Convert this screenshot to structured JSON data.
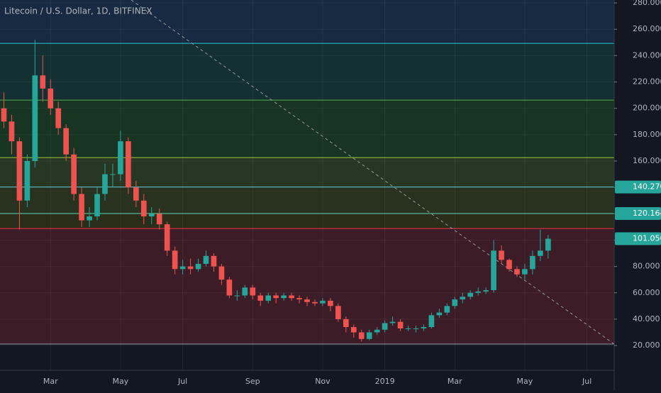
{
  "chart_data": {
    "type": "candlestick",
    "title": "Litecoin / U.S. Dollar, 1D, BITFINEX",
    "categories": [
      null,
      null,
      null,
      null,
      null,
      null,
      "Mar",
      null,
      null,
      null,
      null,
      null,
      null,
      null,
      null,
      "May",
      null,
      null,
      null,
      null,
      null,
      null,
      null,
      "Jul",
      null,
      null,
      null,
      null,
      null,
      null,
      null,
      null,
      "Sep",
      null,
      null,
      null,
      null,
      null,
      null,
      null,
      null,
      "Nov",
      null,
      null,
      null,
      null,
      null,
      null,
      null,
      "2019",
      null,
      null,
      null,
      null,
      null,
      null,
      null,
      null,
      "Mar",
      null,
      null,
      null,
      null,
      null,
      null,
      null,
      null,
      "May",
      null,
      null,
      null,
      null,
      null,
      null,
      null,
      "Jul",
      null,
      null,
      null
    ],
    "open": [
      200,
      190,
      175,
      130,
      160,
      225,
      215,
      200,
      185,
      165,
      135,
      115,
      118,
      135,
      150,
      150,
      175,
      140,
      130,
      118,
      120,
      112,
      92,
      78,
      80,
      78,
      82,
      88,
      80,
      70,
      58,
      58,
      64,
      58,
      54,
      58,
      56,
      58,
      56,
      55,
      53,
      52,
      54,
      50,
      40,
      34,
      30,
      25,
      30,
      32,
      37,
      38,
      33,
      33,
      33,
      34,
      43,
      45,
      50,
      55,
      57,
      60,
      61,
      62,
      92,
      85,
      78,
      74,
      78,
      88,
      92,
      null,
      null,
      null,
      null,
      null,
      null,
      null,
      null
    ],
    "high": [
      212,
      195,
      178,
      165,
      252,
      240,
      222,
      205,
      188,
      170,
      140,
      125,
      140,
      158,
      158,
      183,
      178,
      145,
      135,
      125,
      124,
      114,
      95,
      85,
      86,
      86,
      92,
      90,
      82,
      72,
      62,
      66,
      66,
      60,
      60,
      60,
      60,
      60,
      58,
      57,
      55,
      56,
      56,
      52,
      42,
      36,
      32,
      32,
      34,
      39,
      42,
      40,
      35,
      35,
      36,
      45,
      48,
      52,
      57,
      60,
      62,
      64,
      64,
      100,
      96,
      86,
      80,
      82,
      92,
      108,
      104,
      null,
      null,
      null,
      null,
      null,
      null,
      null,
      null
    ],
    "low": [
      185,
      165,
      108,
      125,
      155,
      205,
      195,
      180,
      160,
      130,
      110,
      110,
      115,
      130,
      140,
      145,
      135,
      125,
      112,
      112,
      108,
      88,
      74,
      74,
      74,
      76,
      80,
      76,
      66,
      56,
      54,
      56,
      55,
      50,
      52,
      52,
      54,
      54,
      52,
      50,
      50,
      50,
      46,
      38,
      30,
      26,
      23,
      24,
      28,
      30,
      35,
      31,
      31,
      30,
      31,
      33,
      41,
      43,
      48,
      52,
      55,
      58,
      59,
      60,
      82,
      76,
      72,
      70,
      74,
      84,
      86,
      null,
      null,
      null,
      null,
      null,
      null,
      null,
      null
    ],
    "close": [
      190,
      175,
      130,
      160,
      225,
      215,
      200,
      185,
      165,
      135,
      115,
      118,
      135,
      150,
      150,
      175,
      140,
      130,
      118,
      120,
      112,
      92,
      78,
      80,
      78,
      82,
      88,
      80,
      70,
      58,
      58,
      64,
      58,
      54,
      58,
      56,
      58,
      56,
      55,
      53,
      52,
      54,
      50,
      40,
      34,
      30,
      25,
      30,
      32,
      37,
      38,
      33,
      33,
      33,
      34,
      43,
      45,
      50,
      55,
      57,
      60,
      61,
      62,
      92,
      85,
      78,
      74,
      78,
      88,
      92,
      101.05,
      null,
      null,
      null,
      null,
      null,
      null,
      null,
      null
    ],
    "up_color": "#26a69a",
    "down_color": "#ef5350",
    "ylim": [
      1.2,
      282.2
    ],
    "yticks": [
      {
        "value": 20,
        "label": "20.000"
      },
      {
        "value": 40,
        "label": "40.000"
      },
      {
        "value": 60,
        "label": "60.000"
      },
      {
        "value": 80,
        "label": "80.000"
      },
      {
        "value": 100,
        "label": "100.000"
      },
      {
        "value": 120,
        "label": "120.000"
      },
      {
        "value": 140,
        "label": "140.000"
      },
      {
        "value": 160,
        "label": "160.000"
      },
      {
        "value": 180,
        "label": "180.000"
      },
      {
        "value": 200,
        "label": "200.000"
      },
      {
        "value": 220,
        "label": "220.000"
      },
      {
        "value": 240,
        "label": "240.000"
      },
      {
        "value": 260,
        "label": "260.000"
      },
      {
        "value": 280,
        "label": "280.000"
      }
    ],
    "grid": true,
    "levels": [
      21.1,
      108.8,
      120.2,
      140.3,
      162.6,
      206.2,
      249.3
    ],
    "level_colors": [
      "#9598a1",
      "#f23645",
      "#4dd0a8",
      "#5cc8d0",
      "#9ccc3c",
      "#4caf50",
      "#26c6da"
    ],
    "band_colors": [
      "rgba(242,54,69,0.18)",
      "rgba(128,128,0,0.22)",
      "rgba(120,150,20,0.22)",
      "rgba(100,150,40,0.25)",
      "rgba(40,140,40,0.25)",
      "rgba(30,140,110,0.22)",
      "rgba(41,98,160,0.25)"
    ],
    "price_labels": [
      {
        "value": 140.27,
        "label": "140.270"
      },
      {
        "value": 120.164,
        "label": "120.164"
      },
      {
        "value": 101.05,
        "label": "101.050"
      }
    ],
    "price_label_color": "#26a69a"
  }
}
